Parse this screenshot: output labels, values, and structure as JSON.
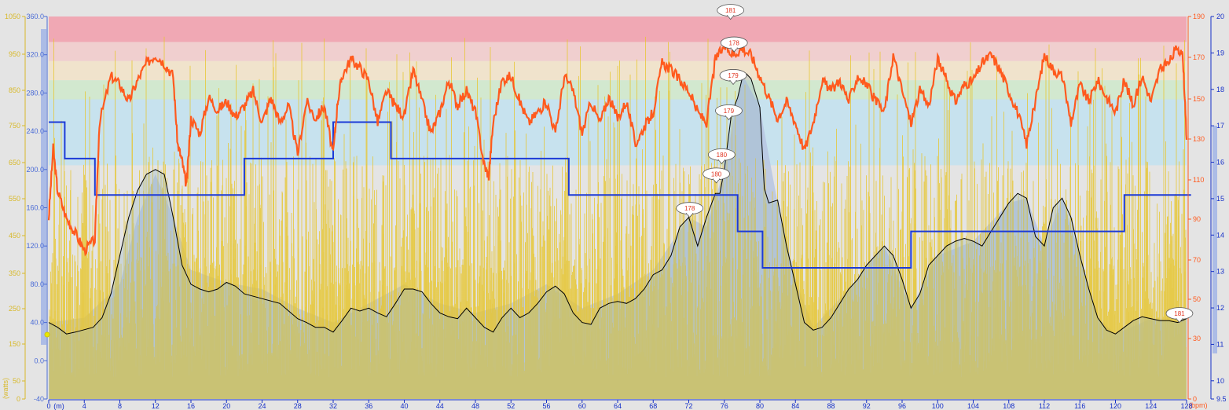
{
  "colors": {
    "background": "#e4e4e4",
    "power_axis": "#d8b92a",
    "speed_axis": "#4a6bd6",
    "hr_axis": "#ff5a1e",
    "cadence_axis": "#1530c8",
    "hr_line": "#ff5a1e",
    "power_fill": "#e6c630",
    "altitude_fill": "#b7c5e2",
    "speed_line": "#000000",
    "cadence_line": "#1c3ad6",
    "zone_5": "#f0a8b4",
    "zone_4": "#f0cfcf",
    "zone_3": "#f0e3cc",
    "zone_2": "#d2e8cf",
    "zone_1": "#c7e2ee"
  },
  "chart_data": {
    "type": "line",
    "x_range": [
      0,
      128
    ],
    "x_ticks": [
      "0",
      "4",
      "8",
      "12",
      "16",
      "20",
      "24",
      "28",
      "32",
      "36",
      "40",
      "44",
      "48",
      "52",
      "56",
      "60",
      "64",
      "68",
      "72",
      "76",
      "80",
      "84",
      "88",
      "92",
      "96",
      "100",
      "104",
      "108",
      "112",
      "116",
      "120",
      "124",
      "128"
    ],
    "x_unit": "(m)",
    "axes": {
      "power": {
        "range": [
          0,
          1050
        ],
        "ticks": [
          "0",
          "50",
          "150",
          "250",
          "350",
          "450",
          "550",
          "650",
          "750",
          "850",
          "950",
          "1050"
        ],
        "unit": "(watts)"
      },
      "speed": {
        "range": [
          -40,
          360
        ],
        "ticks": [
          "-40",
          "0.0",
          "40.0",
          "80.0",
          "120.0",
          "160.0",
          "200.0",
          "240.0",
          "280.0",
          "320.0",
          "360.0"
        ]
      },
      "heart_rate": {
        "range": [
          10,
          190
        ],
        "ticks": [
          "0",
          "30",
          "50",
          "70",
          "90",
          "110",
          "130",
          "150",
          "170",
          "190"
        ],
        "unit": "(bpm)"
      },
      "cadence": {
        "range": [
          9.5,
          20
        ],
        "ticks": [
          "9.5",
          "10",
          "11",
          "12",
          "13",
          "14",
          "15",
          "16",
          "17",
          "18",
          "19",
          "20"
        ]
      }
    },
    "hr_zones": [
      {
        "name": "zone-5",
        "from": 178,
        "to": 190
      },
      {
        "name": "zone-4",
        "from": 169,
        "to": 178
      },
      {
        "name": "zone-3",
        "from": 160,
        "to": 169
      },
      {
        "name": "zone-2",
        "from": 151,
        "to": 160
      },
      {
        "name": "zone-1",
        "from": 120,
        "to": 151
      }
    ],
    "cadence_steps": [
      {
        "x": 0,
        "y": 17.1
      },
      {
        "x": 1.8,
        "y": 16.1
      },
      {
        "x": 5.2,
        "y": 15.1
      },
      {
        "x": 22,
        "y": 16.1
      },
      {
        "x": 32,
        "y": 17.1
      },
      {
        "x": 38.5,
        "y": 16.1
      },
      {
        "x": 58.5,
        "y": 15.1
      },
      {
        "x": 77.5,
        "y": 14.1
      },
      {
        "x": 80.3,
        "y": 13.1
      },
      {
        "x": 97,
        "y": 14.1
      },
      {
        "x": 121,
        "y": 15.1
      },
      {
        "x": 128.5,
        "y": 15.1
      }
    ],
    "heart_rate_series": [
      {
        "x": 0,
        "y": 95
      },
      {
        "x": 0.5,
        "y": 128
      },
      {
        "x": 1,
        "y": 108
      },
      {
        "x": 2,
        "y": 95
      },
      {
        "x": 3,
        "y": 88
      },
      {
        "x": 4,
        "y": 80
      },
      {
        "x": 5.2,
        "y": 85
      },
      {
        "x": 5.7,
        "y": 140
      },
      {
        "x": 7,
        "y": 162
      },
      {
        "x": 8,
        "y": 158
      },
      {
        "x": 9,
        "y": 150
      },
      {
        "x": 10,
        "y": 160
      },
      {
        "x": 11,
        "y": 168
      },
      {
        "x": 12,
        "y": 172
      },
      {
        "x": 13,
        "y": 168
      },
      {
        "x": 14,
        "y": 162
      },
      {
        "x": 14.5,
        "y": 130
      },
      {
        "x": 15,
        "y": 122
      },
      {
        "x": 15.5,
        "y": 110
      },
      {
        "x": 16,
        "y": 142
      },
      {
        "x": 17,
        "y": 135
      },
      {
        "x": 18,
        "y": 152
      },
      {
        "x": 19,
        "y": 146
      },
      {
        "x": 20,
        "y": 150
      },
      {
        "x": 21,
        "y": 143
      },
      {
        "x": 22,
        "y": 148
      },
      {
        "x": 23,
        "y": 155
      },
      {
        "x": 24,
        "y": 140
      },
      {
        "x": 25,
        "y": 152
      },
      {
        "x": 26,
        "y": 140
      },
      {
        "x": 27,
        "y": 148
      },
      {
        "x": 28,
        "y": 125
      },
      {
        "x": 29,
        "y": 150
      },
      {
        "x": 30,
        "y": 142
      },
      {
        "x": 31,
        "y": 148
      },
      {
        "x": 32,
        "y": 125
      },
      {
        "x": 32.5,
        "y": 150
      },
      {
        "x": 33,
        "y": 162
      },
      {
        "x": 34,
        "y": 170
      },
      {
        "x": 35,
        "y": 166
      },
      {
        "x": 36,
        "y": 160
      },
      {
        "x": 37,
        "y": 140
      },
      {
        "x": 38,
        "y": 155
      },
      {
        "x": 39,
        "y": 148
      },
      {
        "x": 40,
        "y": 143
      },
      {
        "x": 41,
        "y": 165
      },
      {
        "x": 42,
        "y": 150
      },
      {
        "x": 43,
        "y": 135
      },
      {
        "x": 44,
        "y": 145
      },
      {
        "x": 45,
        "y": 160
      },
      {
        "x": 46,
        "y": 148
      },
      {
        "x": 47,
        "y": 155
      },
      {
        "x": 48,
        "y": 145
      },
      {
        "x": 49,
        "y": 120
      },
      {
        "x": 49.5,
        "y": 115
      },
      {
        "x": 50,
        "y": 140
      },
      {
        "x": 51,
        "y": 160
      },
      {
        "x": 52,
        "y": 162
      },
      {
        "x": 53,
        "y": 150
      },
      {
        "x": 54,
        "y": 140
      },
      {
        "x": 55,
        "y": 145
      },
      {
        "x": 56,
        "y": 150
      },
      {
        "x": 57,
        "y": 135
      },
      {
        "x": 58,
        "y": 162
      },
      {
        "x": 59,
        "y": 155
      },
      {
        "x": 60,
        "y": 135
      },
      {
        "x": 61,
        "y": 150
      },
      {
        "x": 62,
        "y": 140
      },
      {
        "x": 63,
        "y": 152
      },
      {
        "x": 64,
        "y": 142
      },
      {
        "x": 65,
        "y": 150
      },
      {
        "x": 66,
        "y": 130
      },
      {
        "x": 67,
        "y": 138
      },
      {
        "x": 68,
        "y": 145
      },
      {
        "x": 69,
        "y": 168
      },
      {
        "x": 70,
        "y": 165
      },
      {
        "x": 71,
        "y": 160
      },
      {
        "x": 72,
        "y": 155
      },
      {
        "x": 73,
        "y": 145
      },
      {
        "x": 74,
        "y": 140
      },
      {
        "x": 75,
        "y": 170
      },
      {
        "x": 76,
        "y": 176
      },
      {
        "x": 77,
        "y": 172
      },
      {
        "x": 78,
        "y": 175
      },
      {
        "x": 79,
        "y": 172
      },
      {
        "x": 80,
        "y": 162
      },
      {
        "x": 81,
        "y": 152
      },
      {
        "x": 82,
        "y": 142
      },
      {
        "x": 83,
        "y": 150
      },
      {
        "x": 84,
        "y": 140
      },
      {
        "x": 85,
        "y": 127
      },
      {
        "x": 86,
        "y": 140
      },
      {
        "x": 87,
        "y": 160
      },
      {
        "x": 88,
        "y": 155
      },
      {
        "x": 89,
        "y": 160
      },
      {
        "x": 90,
        "y": 150
      },
      {
        "x": 91,
        "y": 162
      },
      {
        "x": 92,
        "y": 158
      },
      {
        "x": 93,
        "y": 150
      },
      {
        "x": 94,
        "y": 145
      },
      {
        "x": 95,
        "y": 172
      },
      {
        "x": 96,
        "y": 155
      },
      {
        "x": 97,
        "y": 140
      },
      {
        "x": 98,
        "y": 155
      },
      {
        "x": 99,
        "y": 148
      },
      {
        "x": 100,
        "y": 170
      },
      {
        "x": 101,
        "y": 160
      },
      {
        "x": 102,
        "y": 150
      },
      {
        "x": 103,
        "y": 158
      },
      {
        "x": 104,
        "y": 160
      },
      {
        "x": 105,
        "y": 168
      },
      {
        "x": 106,
        "y": 172
      },
      {
        "x": 107,
        "y": 165
      },
      {
        "x": 108,
        "y": 155
      },
      {
        "x": 109,
        "y": 145
      },
      {
        "x": 110,
        "y": 130
      },
      {
        "x": 111,
        "y": 150
      },
      {
        "x": 112,
        "y": 172
      },
      {
        "x": 113,
        "y": 165
      },
      {
        "x": 114,
        "y": 162
      },
      {
        "x": 115,
        "y": 140
      },
      {
        "x": 116,
        "y": 158
      },
      {
        "x": 117,
        "y": 150
      },
      {
        "x": 118,
        "y": 160
      },
      {
        "x": 119,
        "y": 152
      },
      {
        "x": 120,
        "y": 145
      },
      {
        "x": 121,
        "y": 160
      },
      {
        "x": 122,
        "y": 148
      },
      {
        "x": 123,
        "y": 162
      },
      {
        "x": 124,
        "y": 150
      },
      {
        "x": 125,
        "y": 165
      },
      {
        "x": 126,
        "y": 168
      },
      {
        "x": 127,
        "y": 176
      },
      {
        "x": 127.6,
        "y": 170
      },
      {
        "x": 128,
        "y": 132
      }
    ],
    "speed_series": [
      {
        "x": 0,
        "y": 40
      },
      {
        "x": 1,
        "y": 35
      },
      {
        "x": 2,
        "y": 28
      },
      {
        "x": 3,
        "y": 30
      },
      {
        "x": 5,
        "y": 35
      },
      {
        "x": 6,
        "y": 45
      },
      {
        "x": 7,
        "y": 70
      },
      {
        "x": 8,
        "y": 110
      },
      {
        "x": 9,
        "y": 150
      },
      {
        "x": 10,
        "y": 178
      },
      {
        "x": 11,
        "y": 195
      },
      {
        "x": 12,
        "y": 200
      },
      {
        "x": 13,
        "y": 195
      },
      {
        "x": 14,
        "y": 150
      },
      {
        "x": 15,
        "y": 100
      },
      {
        "x": 16,
        "y": 80
      },
      {
        "x": 17,
        "y": 75
      },
      {
        "x": 18,
        "y": 72
      },
      {
        "x": 19,
        "y": 75
      },
      {
        "x": 20,
        "y": 82
      },
      {
        "x": 21,
        "y": 78
      },
      {
        "x": 22,
        "y": 70
      },
      {
        "x": 24,
        "y": 65
      },
      {
        "x": 26,
        "y": 60
      },
      {
        "x": 27,
        "y": 52
      },
      {
        "x": 28,
        "y": 44
      },
      {
        "x": 29,
        "y": 40
      },
      {
        "x": 30,
        "y": 35
      },
      {
        "x": 31,
        "y": 35
      },
      {
        "x": 32,
        "y": 30
      },
      {
        "x": 33,
        "y": 42
      },
      {
        "x": 34,
        "y": 55
      },
      {
        "x": 35,
        "y": 52
      },
      {
        "x": 36,
        "y": 55
      },
      {
        "x": 37,
        "y": 50
      },
      {
        "x": 38,
        "y": 46
      },
      {
        "x": 39,
        "y": 60
      },
      {
        "x": 40,
        "y": 75
      },
      {
        "x": 41,
        "y": 75
      },
      {
        "x": 42,
        "y": 72
      },
      {
        "x": 43,
        "y": 60
      },
      {
        "x": 44,
        "y": 50
      },
      {
        "x": 45,
        "y": 46
      },
      {
        "x": 46,
        "y": 44
      },
      {
        "x": 47,
        "y": 55
      },
      {
        "x": 48,
        "y": 45
      },
      {
        "x": 49,
        "y": 35
      },
      {
        "x": 50,
        "y": 30
      },
      {
        "x": 51,
        "y": 45
      },
      {
        "x": 52,
        "y": 55
      },
      {
        "x": 53,
        "y": 45
      },
      {
        "x": 54,
        "y": 50
      },
      {
        "x": 55,
        "y": 60
      },
      {
        "x": 56,
        "y": 72
      },
      {
        "x": 57,
        "y": 78
      },
      {
        "x": 58,
        "y": 70
      },
      {
        "x": 59,
        "y": 50
      },
      {
        "x": 60,
        "y": 40
      },
      {
        "x": 61,
        "y": 38
      },
      {
        "x": 62,
        "y": 55
      },
      {
        "x": 63,
        "y": 60
      },
      {
        "x": 64,
        "y": 62
      },
      {
        "x": 65,
        "y": 60
      },
      {
        "x": 66,
        "y": 65
      },
      {
        "x": 67,
        "y": 75
      },
      {
        "x": 68,
        "y": 90
      },
      {
        "x": 69,
        "y": 95
      },
      {
        "x": 70,
        "y": 110
      },
      {
        "x": 71,
        "y": 140
      },
      {
        "x": 72,
        "y": 150
      },
      {
        "x": 73,
        "y": 120
      },
      {
        "x": 74,
        "y": 150
      },
      {
        "x": 75,
        "y": 175
      },
      {
        "x": 75.5,
        "y": 175
      },
      {
        "x": 76,
        "y": 200
      },
      {
        "x": 76.8,
        "y": 258
      },
      {
        "x": 77.5,
        "y": 275
      },
      {
        "x": 78,
        "y": 295
      },
      {
        "x": 78.5,
        "y": 300
      },
      {
        "x": 79,
        "y": 295
      },
      {
        "x": 80,
        "y": 265
      },
      {
        "x": 80.5,
        "y": 180
      },
      {
        "x": 81,
        "y": 165
      },
      {
        "x": 82,
        "y": 168
      },
      {
        "x": 83,
        "y": 120
      },
      {
        "x": 84,
        "y": 80
      },
      {
        "x": 85,
        "y": 40
      },
      {
        "x": 86,
        "y": 32
      },
      {
        "x": 87,
        "y": 35
      },
      {
        "x": 88,
        "y": 45
      },
      {
        "x": 89,
        "y": 60
      },
      {
        "x": 90,
        "y": 75
      },
      {
        "x": 91,
        "y": 85
      },
      {
        "x": 92,
        "y": 100
      },
      {
        "x": 93,
        "y": 110
      },
      {
        "x": 94,
        "y": 120
      },
      {
        "x": 95,
        "y": 110
      },
      {
        "x": 96,
        "y": 85
      },
      {
        "x": 97,
        "y": 55
      },
      {
        "x": 98,
        "y": 70
      },
      {
        "x": 99,
        "y": 100
      },
      {
        "x": 100,
        "y": 110
      },
      {
        "x": 101,
        "y": 120
      },
      {
        "x": 102,
        "y": 125
      },
      {
        "x": 103,
        "y": 128
      },
      {
        "x": 104,
        "y": 125
      },
      {
        "x": 105,
        "y": 120
      },
      {
        "x": 106,
        "y": 135
      },
      {
        "x": 107,
        "y": 150
      },
      {
        "x": 108,
        "y": 165
      },
      {
        "x": 109,
        "y": 175
      },
      {
        "x": 110,
        "y": 170
      },
      {
        "x": 111,
        "y": 130
      },
      {
        "x": 112,
        "y": 120
      },
      {
        "x": 113,
        "y": 160
      },
      {
        "x": 114,
        "y": 170
      },
      {
        "x": 115,
        "y": 150
      },
      {
        "x": 116,
        "y": 110
      },
      {
        "x": 117,
        "y": 75
      },
      {
        "x": 118,
        "y": 45
      },
      {
        "x": 119,
        "y": 32
      },
      {
        "x": 120,
        "y": 28
      },
      {
        "x": 121,
        "y": 35
      },
      {
        "x": 122,
        "y": 42
      },
      {
        "x": 123,
        "y": 46
      },
      {
        "x": 124,
        "y": 44
      },
      {
        "x": 125,
        "y": 42
      },
      {
        "x": 126,
        "y": 42
      },
      {
        "x": 127,
        "y": 40
      },
      {
        "x": 128,
        "y": 44
      }
    ],
    "altitude_series": [
      {
        "x": 0,
        "y": 40
      },
      {
        "x": 4,
        "y": 45
      },
      {
        "x": 8,
        "y": 80
      },
      {
        "x": 10,
        "y": 150
      },
      {
        "x": 12,
        "y": 195
      },
      {
        "x": 14,
        "y": 150
      },
      {
        "x": 16,
        "y": 95
      },
      {
        "x": 20,
        "y": 82
      },
      {
        "x": 24,
        "y": 75
      },
      {
        "x": 28,
        "y": 55
      },
      {
        "x": 32,
        "y": 40
      },
      {
        "x": 36,
        "y": 60
      },
      {
        "x": 40,
        "y": 80
      },
      {
        "x": 44,
        "y": 60
      },
      {
        "x": 48,
        "y": 50
      },
      {
        "x": 52,
        "y": 60
      },
      {
        "x": 56,
        "y": 80
      },
      {
        "x": 60,
        "y": 55
      },
      {
        "x": 64,
        "y": 70
      },
      {
        "x": 68,
        "y": 95
      },
      {
        "x": 72,
        "y": 150
      },
      {
        "x": 74,
        "y": 140
      },
      {
        "x": 76,
        "y": 200
      },
      {
        "x": 78,
        "y": 300
      },
      {
        "x": 80,
        "y": 265
      },
      {
        "x": 82,
        "y": 165
      },
      {
        "x": 84,
        "y": 85
      },
      {
        "x": 86,
        "y": 35
      },
      {
        "x": 90,
        "y": 75
      },
      {
        "x": 94,
        "y": 120
      },
      {
        "x": 97,
        "y": 55
      },
      {
        "x": 100,
        "y": 110
      },
      {
        "x": 104,
        "y": 125
      },
      {
        "x": 108,
        "y": 165
      },
      {
        "x": 110,
        "y": 170
      },
      {
        "x": 112,
        "y": 120
      },
      {
        "x": 114,
        "y": 170
      },
      {
        "x": 116,
        "y": 110
      },
      {
        "x": 118,
        "y": 45
      },
      {
        "x": 120,
        "y": 28
      },
      {
        "x": 124,
        "y": 44
      },
      {
        "x": 128,
        "y": 44
      }
    ],
    "hr_peak_labels": [
      {
        "x": 76.7,
        "y": 357,
        "label": "181"
      },
      {
        "x": 77.1,
        "y": 323,
        "label": "178"
      },
      {
        "x": 77.0,
        "y": 289,
        "label": "179"
      },
      {
        "x": 76.5,
        "y": 252,
        "label": "179"
      },
      {
        "x": 75.7,
        "y": 206,
        "label": "180"
      },
      {
        "x": 75.1,
        "y": 186,
        "label": "180"
      },
      {
        "x": 72.1,
        "y": 150,
        "label": "178"
      },
      {
        "x": 127.2,
        "y": 40,
        "label": "181"
      }
    ]
  }
}
